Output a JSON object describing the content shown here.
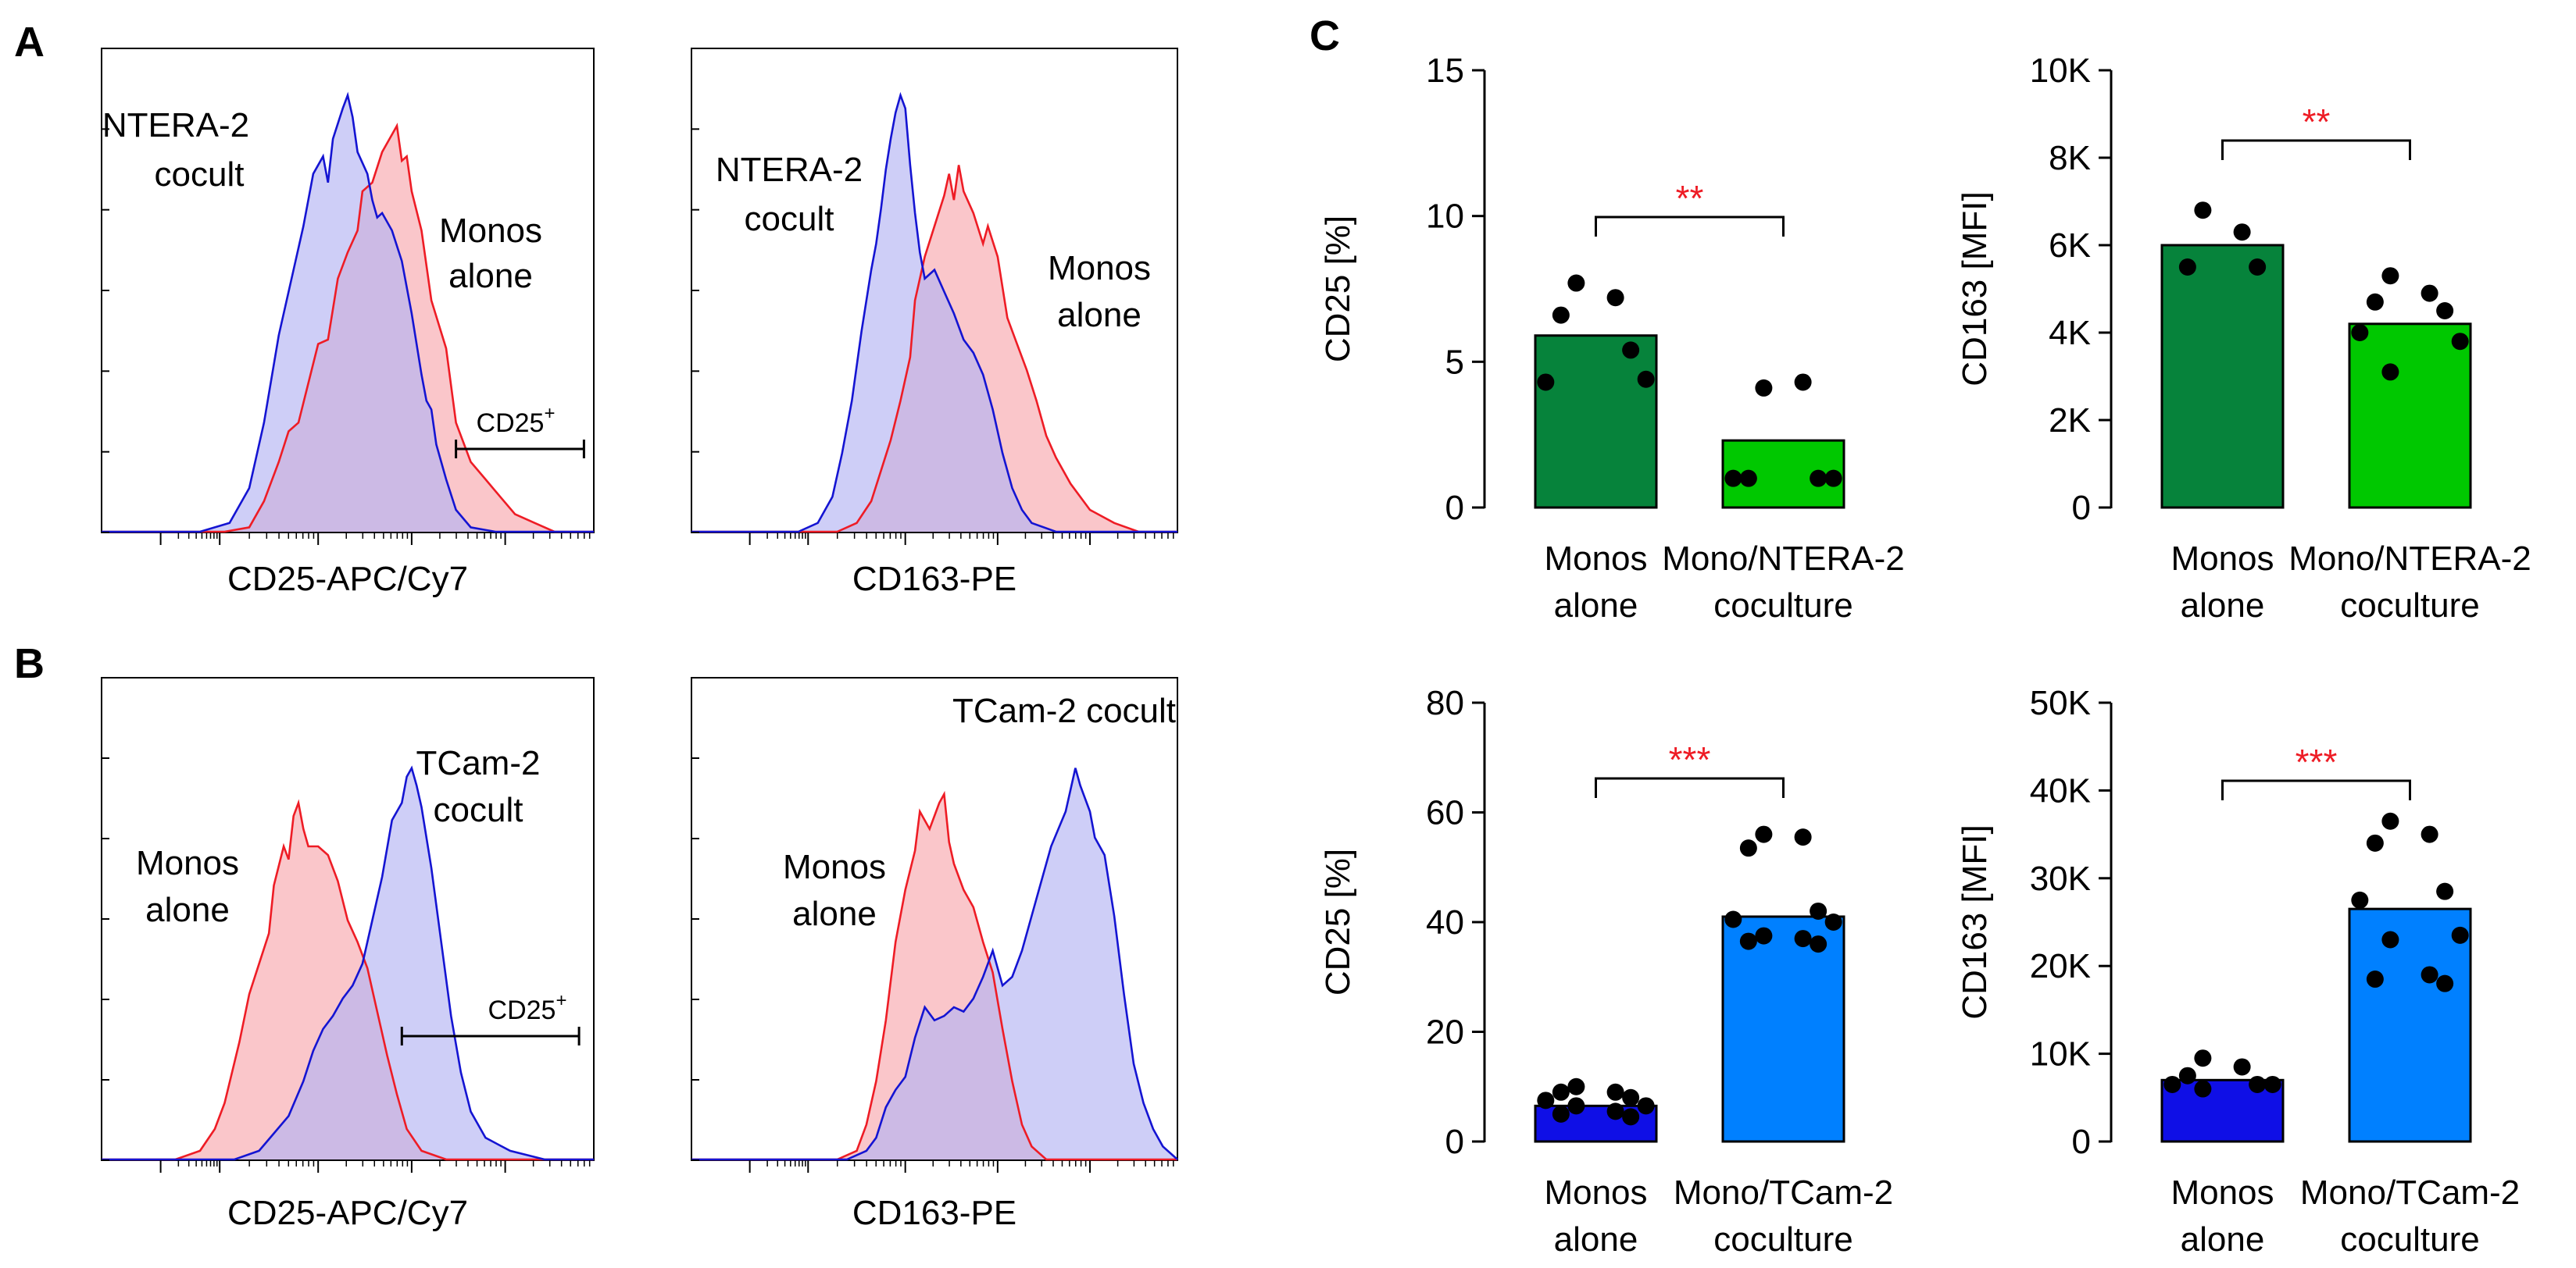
{
  "panel_labels": {
    "a": "A",
    "b": "B",
    "c": "C"
  },
  "colors": {
    "red_line": "#ee1c25",
    "red_fill": "#f7a8ad",
    "blue_line": "#1414d2",
    "blue_fill": "#b3b3f2",
    "dark_green": "#06833b",
    "light_green": "#00c800",
    "dark_blue": "#0f0fe6",
    "light_blue": "#0080ff",
    "sig_red": "#ee1c25",
    "axis": "#000000"
  },
  "histograms": [
    {
      "id": "A1",
      "xlabel": "CD25-APC/Cy7",
      "blue_label": [
        "NTERA-2",
        "cocult"
      ],
      "red_label": [
        "Monos",
        "alone"
      ],
      "gate_label": "CD25",
      "gate_sup": "+",
      "blue_curve": [
        [
          0,
          0
        ],
        [
          0.2,
          0
        ],
        [
          0.26,
          0.02
        ],
        [
          0.3,
          0.1
        ],
        [
          0.33,
          0.25
        ],
        [
          0.36,
          0.45
        ],
        [
          0.39,
          0.6
        ],
        [
          0.41,
          0.7
        ],
        [
          0.43,
          0.82
        ],
        [
          0.45,
          0.86
        ],
        [
          0.46,
          0.8
        ],
        [
          0.47,
          0.9
        ],
        [
          0.49,
          0.97
        ],
        [
          0.5,
          1.0
        ],
        [
          0.51,
          0.95
        ],
        [
          0.52,
          0.87
        ],
        [
          0.54,
          0.82
        ],
        [
          0.55,
          0.76
        ],
        [
          0.56,
          0.72
        ],
        [
          0.57,
          0.73
        ],
        [
          0.59,
          0.69
        ],
        [
          0.61,
          0.62
        ],
        [
          0.63,
          0.5
        ],
        [
          0.65,
          0.36
        ],
        [
          0.66,
          0.3
        ],
        [
          0.67,
          0.28
        ],
        [
          0.68,
          0.2
        ],
        [
          0.7,
          0.12
        ],
        [
          0.72,
          0.05
        ],
        [
          0.75,
          0.01
        ],
        [
          0.8,
          0
        ],
        [
          1,
          0
        ]
      ],
      "red_curve": [
        [
          0,
          0
        ],
        [
          0.25,
          0
        ],
        [
          0.3,
          0.01
        ],
        [
          0.33,
          0.07
        ],
        [
          0.36,
          0.16
        ],
        [
          0.38,
          0.23
        ],
        [
          0.4,
          0.25
        ],
        [
          0.42,
          0.34
        ],
        [
          0.44,
          0.43
        ],
        [
          0.46,
          0.44
        ],
        [
          0.48,
          0.58
        ],
        [
          0.5,
          0.64
        ],
        [
          0.52,
          0.69
        ],
        [
          0.53,
          0.78
        ],
        [
          0.55,
          0.8
        ],
        [
          0.57,
          0.87
        ],
        [
          0.58,
          0.89
        ],
        [
          0.6,
          0.93
        ],
        [
          0.61,
          0.85
        ],
        [
          0.62,
          0.86
        ],
        [
          0.63,
          0.78
        ],
        [
          0.65,
          0.69
        ],
        [
          0.67,
          0.53
        ],
        [
          0.7,
          0.42
        ],
        [
          0.72,
          0.25
        ],
        [
          0.75,
          0.16
        ],
        [
          0.78,
          0.12
        ],
        [
          0.81,
          0.08
        ],
        [
          0.84,
          0.04
        ],
        [
          0.88,
          0.02
        ],
        [
          0.92,
          0
        ],
        [
          1,
          0
        ]
      ],
      "gate_range": [
        0.72,
        0.98
      ]
    },
    {
      "id": "A2",
      "xlabel": "CD163-PE",
      "blue_label": [
        "NTERA-2",
        "cocult"
      ],
      "red_label": [
        "Monos",
        "alone"
      ],
      "blue_curve": [
        [
          0,
          0
        ],
        [
          0.22,
          0
        ],
        [
          0.26,
          0.02
        ],
        [
          0.29,
          0.08
        ],
        [
          0.31,
          0.18
        ],
        [
          0.33,
          0.3
        ],
        [
          0.35,
          0.46
        ],
        [
          0.37,
          0.6
        ],
        [
          0.38,
          0.66
        ],
        [
          0.39,
          0.74
        ],
        [
          0.4,
          0.83
        ],
        [
          0.41,
          0.9
        ],
        [
          0.42,
          0.96
        ],
        [
          0.43,
          1.0
        ],
        [
          0.44,
          0.97
        ],
        [
          0.45,
          0.84
        ],
        [
          0.46,
          0.73
        ],
        [
          0.47,
          0.64
        ],
        [
          0.48,
          0.58
        ],
        [
          0.5,
          0.6
        ],
        [
          0.52,
          0.55
        ],
        [
          0.54,
          0.5
        ],
        [
          0.56,
          0.44
        ],
        [
          0.58,
          0.41
        ],
        [
          0.6,
          0.36
        ],
        [
          0.62,
          0.28
        ],
        [
          0.64,
          0.18
        ],
        [
          0.66,
          0.1
        ],
        [
          0.68,
          0.05
        ],
        [
          0.7,
          0.02
        ],
        [
          0.75,
          0
        ],
        [
          1,
          0
        ]
      ],
      "red_curve": [
        [
          0,
          0
        ],
        [
          0.3,
          0
        ],
        [
          0.34,
          0.02
        ],
        [
          0.37,
          0.07
        ],
        [
          0.39,
          0.14
        ],
        [
          0.41,
          0.21
        ],
        [
          0.43,
          0.3
        ],
        [
          0.45,
          0.4
        ],
        [
          0.46,
          0.53
        ],
        [
          0.48,
          0.63
        ],
        [
          0.5,
          0.7
        ],
        [
          0.52,
          0.77
        ],
        [
          0.53,
          0.82
        ],
        [
          0.54,
          0.76
        ],
        [
          0.55,
          0.84
        ],
        [
          0.56,
          0.78
        ],
        [
          0.58,
          0.73
        ],
        [
          0.6,
          0.66
        ],
        [
          0.61,
          0.7
        ],
        [
          0.63,
          0.63
        ],
        [
          0.65,
          0.49
        ],
        [
          0.67,
          0.43
        ],
        [
          0.69,
          0.37
        ],
        [
          0.71,
          0.3
        ],
        [
          0.73,
          0.22
        ],
        [
          0.75,
          0.17
        ],
        [
          0.78,
          0.11
        ],
        [
          0.82,
          0.05
        ],
        [
          0.87,
          0.02
        ],
        [
          0.92,
          0
        ],
        [
          1,
          0
        ]
      ]
    },
    {
      "id": "B1",
      "xlabel": "CD25-APC/Cy7",
      "blue_label": [
        "TCam-2",
        "cocult"
      ],
      "red_label": [
        "Monos",
        "alone"
      ],
      "gate_label": "CD25",
      "gate_sup": "+",
      "red_curve": [
        [
          0,
          0
        ],
        [
          0.15,
          0
        ],
        [
          0.2,
          0.02
        ],
        [
          0.23,
          0.07
        ],
        [
          0.25,
          0.13
        ],
        [
          0.28,
          0.27
        ],
        [
          0.3,
          0.38
        ],
        [
          0.32,
          0.45
        ],
        [
          0.34,
          0.52
        ],
        [
          0.35,
          0.63
        ],
        [
          0.37,
          0.72
        ],
        [
          0.38,
          0.69
        ],
        [
          0.39,
          0.79
        ],
        [
          0.4,
          0.82
        ],
        [
          0.41,
          0.76
        ],
        [
          0.42,
          0.72
        ],
        [
          0.44,
          0.72
        ],
        [
          0.46,
          0.7
        ],
        [
          0.48,
          0.64
        ],
        [
          0.5,
          0.55
        ],
        [
          0.52,
          0.5
        ],
        [
          0.54,
          0.44
        ],
        [
          0.56,
          0.34
        ],
        [
          0.58,
          0.24
        ],
        [
          0.6,
          0.15
        ],
        [
          0.62,
          0.07
        ],
        [
          0.65,
          0.02
        ],
        [
          0.7,
          0
        ],
        [
          1,
          0
        ]
      ],
      "blue_curve": [
        [
          0,
          0
        ],
        [
          0.27,
          0
        ],
        [
          0.32,
          0.02
        ],
        [
          0.35,
          0.06
        ],
        [
          0.38,
          0.1
        ],
        [
          0.41,
          0.18
        ],
        [
          0.43,
          0.25
        ],
        [
          0.45,
          0.3
        ],
        [
          0.47,
          0.33
        ],
        [
          0.49,
          0.37
        ],
        [
          0.51,
          0.4
        ],
        [
          0.53,
          0.45
        ],
        [
          0.55,
          0.55
        ],
        [
          0.57,
          0.65
        ],
        [
          0.59,
          0.78
        ],
        [
          0.61,
          0.82
        ],
        [
          0.62,
          0.88
        ],
        [
          0.63,
          0.9
        ],
        [
          0.64,
          0.86
        ],
        [
          0.65,
          0.81
        ],
        [
          0.67,
          0.67
        ],
        [
          0.69,
          0.5
        ],
        [
          0.71,
          0.33
        ],
        [
          0.73,
          0.2
        ],
        [
          0.75,
          0.11
        ],
        [
          0.78,
          0.05
        ],
        [
          0.83,
          0.02
        ],
        [
          0.9,
          0
        ],
        [
          1,
          0
        ]
      ],
      "gate_range": [
        0.61,
        0.97
      ]
    },
    {
      "id": "B2",
      "xlabel": "CD163-PE",
      "blue_label": [
        "TCam-2 cocult"
      ],
      "red_label": [
        "Monos",
        "alone"
      ],
      "red_curve": [
        [
          0,
          0
        ],
        [
          0.3,
          0
        ],
        [
          0.34,
          0.02
        ],
        [
          0.36,
          0.08
        ],
        [
          0.38,
          0.18
        ],
        [
          0.4,
          0.32
        ],
        [
          0.42,
          0.5
        ],
        [
          0.44,
          0.62
        ],
        [
          0.46,
          0.71
        ],
        [
          0.47,
          0.8
        ],
        [
          0.49,
          0.76
        ],
        [
          0.51,
          0.82
        ],
        [
          0.52,
          0.84
        ],
        [
          0.53,
          0.73
        ],
        [
          0.54,
          0.68
        ],
        [
          0.56,
          0.62
        ],
        [
          0.58,
          0.58
        ],
        [
          0.6,
          0.5
        ],
        [
          0.62,
          0.43
        ],
        [
          0.64,
          0.3
        ],
        [
          0.66,
          0.18
        ],
        [
          0.68,
          0.08
        ],
        [
          0.7,
          0.03
        ],
        [
          0.73,
          0
        ],
        [
          1,
          0
        ]
      ],
      "blue_curve": [
        [
          0,
          0
        ],
        [
          0.32,
          0
        ],
        [
          0.36,
          0.02
        ],
        [
          0.38,
          0.05
        ],
        [
          0.4,
          0.12
        ],
        [
          0.42,
          0.16
        ],
        [
          0.44,
          0.19
        ],
        [
          0.46,
          0.28
        ],
        [
          0.48,
          0.35
        ],
        [
          0.5,
          0.32
        ],
        [
          0.52,
          0.33
        ],
        [
          0.54,
          0.35
        ],
        [
          0.56,
          0.34
        ],
        [
          0.58,
          0.37
        ],
        [
          0.6,
          0.42
        ],
        [
          0.62,
          0.48
        ],
        [
          0.64,
          0.4
        ],
        [
          0.66,
          0.42
        ],
        [
          0.68,
          0.48
        ],
        [
          0.71,
          0.6
        ],
        [
          0.74,
          0.72
        ],
        [
          0.77,
          0.8
        ],
        [
          0.79,
          0.9
        ],
        [
          0.8,
          0.86
        ],
        [
          0.82,
          0.8
        ],
        [
          0.83,
          0.74
        ],
        [
          0.85,
          0.7
        ],
        [
          0.87,
          0.56
        ],
        [
          0.89,
          0.38
        ],
        [
          0.91,
          0.22
        ],
        [
          0.93,
          0.13
        ],
        [
          0.95,
          0.07
        ],
        [
          0.97,
          0.03
        ],
        [
          1,
          0
        ]
      ]
    }
  ],
  "chart_data": [
    {
      "id": "C1",
      "type": "bar",
      "ylabel": "CD25 [%]",
      "ylim": [
        0,
        15
      ],
      "yticks": [
        0,
        5,
        10,
        15
      ],
      "ytick_labels": [
        "0",
        "5",
        "10",
        "15"
      ],
      "categories": [
        [
          "Monos",
          "alone"
        ],
        [
          "Mono/NTERA-2",
          "coculture"
        ]
      ],
      "values": [
        5.9,
        2.3
      ],
      "bar_colors": [
        "#06833b",
        "#00c800"
      ],
      "points": [
        [
          7.7,
          7.2,
          6.6,
          5.4,
          4.3,
          4.4
        ],
        [
          4.1,
          4.3,
          1.0,
          1.0,
          1.0,
          1.0
        ]
      ],
      "significance": "**"
    },
    {
      "id": "C2",
      "type": "bar",
      "ylabel": "CD163 [MFI]",
      "ylim": [
        0,
        10000
      ],
      "yticks": [
        0,
        2000,
        4000,
        6000,
        8000,
        10000
      ],
      "ytick_labels": [
        "0",
        "2K",
        "4K",
        "6K",
        "8K",
        "10K"
      ],
      "categories": [
        [
          "Monos",
          "alone"
        ],
        [
          "Mono/NTERA-2",
          "coculture"
        ]
      ],
      "values": [
        6000,
        4200
      ],
      "bar_colors": [
        "#06833b",
        "#00c800"
      ],
      "points": [
        [
          6800,
          6300,
          5500,
          5500
        ],
        [
          5300,
          4900,
          4700,
          4500,
          4000,
          3800,
          3100
        ]
      ],
      "significance": "**"
    },
    {
      "id": "C3",
      "type": "bar",
      "ylabel": "CD25 [%]",
      "ylim": [
        0,
        80
      ],
      "yticks": [
        0,
        20,
        40,
        60,
        80
      ],
      "ytick_labels": [
        "0",
        "20",
        "40",
        "60",
        "80"
      ],
      "categories": [
        [
          "Monos",
          "alone"
        ],
        [
          "Mono/TCam-2",
          "coculture"
        ]
      ],
      "values": [
        6.5,
        41.0
      ],
      "bar_colors": [
        "#0f0fe6",
        "#0080ff"
      ],
      "points": [
        [
          10.0,
          9.0,
          9.0,
          8.0,
          7.5,
          6.5,
          6.5,
          5.5,
          5.0,
          4.5
        ],
        [
          56.0,
          55.5,
          53.5,
          42.0,
          40.5,
          40.0,
          37.5,
          37.0,
          36.5,
          36.0
        ]
      ],
      "significance": "***"
    },
    {
      "id": "C4",
      "type": "bar",
      "ylabel": "CD163 [MFI]",
      "ylim": [
        0,
        50000
      ],
      "yticks": [
        0,
        10000,
        20000,
        30000,
        40000,
        50000
      ],
      "ytick_labels": [
        "0",
        "10K",
        "20K",
        "30K",
        "40K",
        "50K"
      ],
      "categories": [
        [
          "Monos",
          "alone"
        ],
        [
          "Mono/TCam-2",
          "coculture"
        ]
      ],
      "values": [
        7000,
        26500
      ],
      "bar_colors": [
        "#0f0fe6",
        "#0080ff"
      ],
      "points": [
        [
          9500,
          8500,
          7500,
          6500,
          6500,
          6500,
          6000
        ],
        [
          36500,
          35000,
          34000,
          28500,
          27500,
          23500,
          23000,
          19000,
          18500,
          18000
        ]
      ],
      "significance": "***"
    }
  ]
}
